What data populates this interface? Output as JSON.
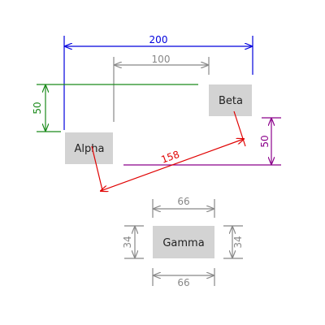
{
  "colors": {
    "blue": "#0000dd",
    "gray": "#888888",
    "green": "#1a8a1a",
    "purple": "#8b008b",
    "red": "#e00000",
    "box_fill": "#d3d3d3"
  },
  "boxes": {
    "alpha": "Alpha",
    "beta": "Beta",
    "gamma": "Gamma"
  },
  "dimensions": {
    "top_span": "200",
    "inner_span": "100",
    "left_height": "50",
    "right_height": "50",
    "diagonal": "158",
    "gamma_width_top": "66",
    "gamma_width_bottom": "66",
    "gamma_height_left": "34",
    "gamma_height_right": "34"
  }
}
